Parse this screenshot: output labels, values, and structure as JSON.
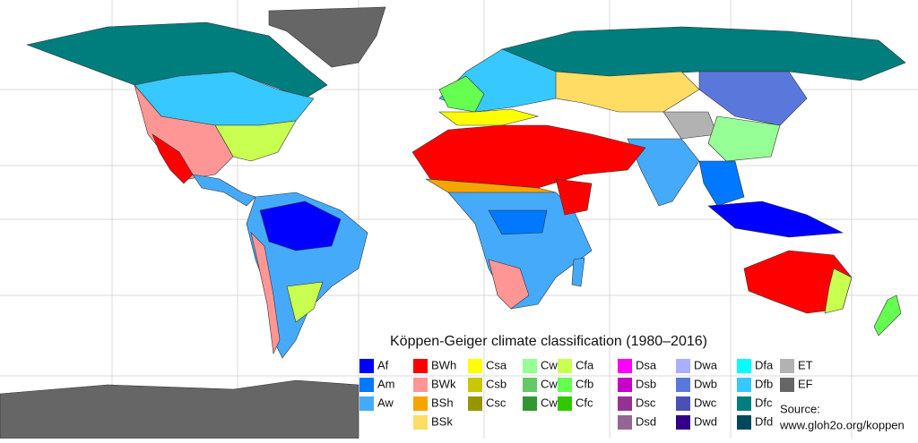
{
  "map": {
    "title": "Köppen-Geiger climate classification (1980–2016)",
    "legend": [
      [
        {
          "code": "Af",
          "color": "#0000ff"
        },
        {
          "code": "Am",
          "color": "#0078ff"
        },
        {
          "code": "Aw",
          "color": "#46aafa"
        }
      ],
      [
        {
          "code": "BWh",
          "color": "#ff0000"
        },
        {
          "code": "BWk",
          "color": "#ff9696"
        },
        {
          "code": "BSh",
          "color": "#f5a500"
        },
        {
          "code": "BSk",
          "color": "#ffdc64"
        }
      ],
      [
        {
          "code": "Csa",
          "color": "#ffff00"
        },
        {
          "code": "Csb",
          "color": "#c8c800"
        },
        {
          "code": "Csc",
          "color": "#969600"
        }
      ],
      [
        {
          "code": "Cwa",
          "color": "#96ff96"
        },
        {
          "code": "Cwb",
          "color": "#64c864"
        },
        {
          "code": "Cwc",
          "color": "#329632"
        }
      ],
      [
        {
          "code": "Cfa",
          "color": "#c8ff50"
        },
        {
          "code": "Cfb",
          "color": "#64ff50"
        },
        {
          "code": "Cfc",
          "color": "#32c800"
        }
      ],
      [
        {
          "code": "Dsa",
          "color": "#ff00ff"
        },
        {
          "code": "Dsb",
          "color": "#c800c8"
        },
        {
          "code": "Dsc",
          "color": "#963296"
        },
        {
          "code": "Dsd",
          "color": "#966496"
        }
      ],
      [
        {
          "code": "Dwa",
          "color": "#aaafff"
        },
        {
          "code": "Dwb",
          "color": "#5a78dc"
        },
        {
          "code": "Dwc",
          "color": "#4b50b4"
        },
        {
          "code": "Dwd",
          "color": "#320087"
        }
      ],
      [
        {
          "code": "Dfa",
          "color": "#00ffff"
        },
        {
          "code": "Dfb",
          "color": "#37c8ff"
        },
        {
          "code": "Dfc",
          "color": "#007d7d"
        },
        {
          "code": "Dfd",
          "color": "#00465f"
        }
      ],
      [
        {
          "code": "ET",
          "color": "#b2b2b2"
        },
        {
          "code": "EF",
          "color": "#666666"
        }
      ]
    ],
    "source": [
      "Source:",
      "www.gloh2o.org/koppen"
    ]
  }
}
